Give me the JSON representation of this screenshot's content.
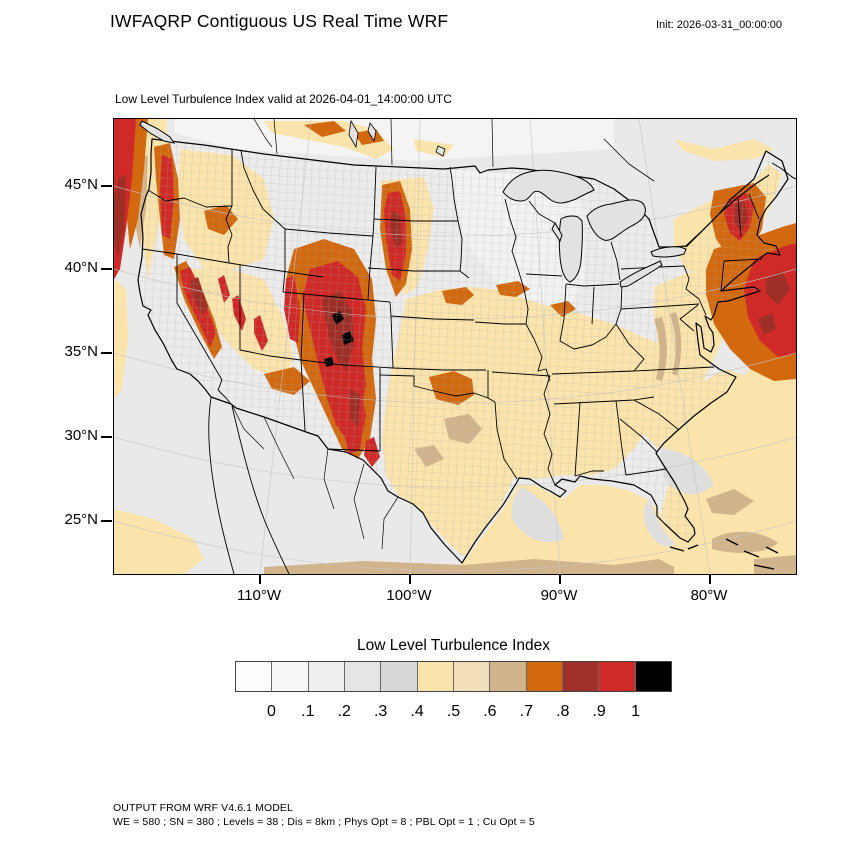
{
  "header": {
    "title": "IWFAQRP Contiguous US Real Time WRF",
    "init_label": "Init: 2026-03-31_00:00:00"
  },
  "map": {
    "subtitle": "Low Level Turbulence Index valid at 2026-04-01_14:00:00 UTC",
    "lat_labels": [
      "45°N",
      "40°N",
      "35°N",
      "30°N",
      "25°N"
    ],
    "lon_labels": [
      "110°W",
      "100°W",
      "90°W",
      "80°W"
    ]
  },
  "colorbar": {
    "title": "Low Level Turbulence Index",
    "tick_labels": [
      "0",
      ".1",
      ".2",
      ".3",
      ".4",
      ".5",
      ".6",
      ".7",
      ".8",
      ".9",
      "1"
    ],
    "segment_colors": [
      "#FEFEFE",
      "#F7F7F7",
      "#EFEFEF",
      "#E5E5E5",
      "#D8D8D8",
      "#FBE4AC",
      "#F2DFBA",
      "#D2B48C",
      "#D2690F",
      "#A0302A",
      "#CF2A27",
      "#000000"
    ]
  },
  "footer": {
    "line1": "OUTPUT FROM WRF V4.6.1 MODEL",
    "line2": "WE = 580 ; SN = 380 ; Levels = 38 ; Dis = 8km ; Phys Opt = 8 ; PBL Opt = 1 ; Cu Opt = 5"
  },
  "chart_data": {
    "type": "heatmap",
    "title": "Low Level Turbulence Index",
    "valid_time": "2026-04-01_14:00:00 UTC",
    "init_time": "2026-03-31_00:00:00",
    "levels": [
      0,
      0.1,
      0.2,
      0.3,
      0.4,
      0.5,
      0.6,
      0.7,
      0.8,
      0.9,
      1
    ],
    "level_colors": [
      "#FEFEFE",
      "#F7F7F7",
      "#EFEFEF",
      "#E5E5E5",
      "#D8D8D8",
      "#FBE4AC",
      "#F2DFBA",
      "#D2B48C",
      "#D2690F",
      "#A0302A",
      "#CF2A27",
      "#000000"
    ],
    "xlabel_ticks": [
      "110°W",
      "100°W",
      "90°W",
      "80°W"
    ],
    "ylabel_ticks": [
      "45°N",
      "40°N",
      "35°N",
      "30°N",
      "25°N"
    ],
    "high_turbulence_regions": [
      "Colorado Rockies (values near 1 with >1 black spots)",
      "Sierra Nevada",
      "Cascades / Pacific Northwest offshore",
      "Western Dakotas band",
      "Vermont / New Hampshire mountains",
      "Offshore western Atlantic near New England"
    ],
    "low_turbulence_regions": [
      "Upper Midwest",
      "Ohio Valley",
      "Southeast interior",
      "Gulf coastal waters near Texas"
    ]
  }
}
